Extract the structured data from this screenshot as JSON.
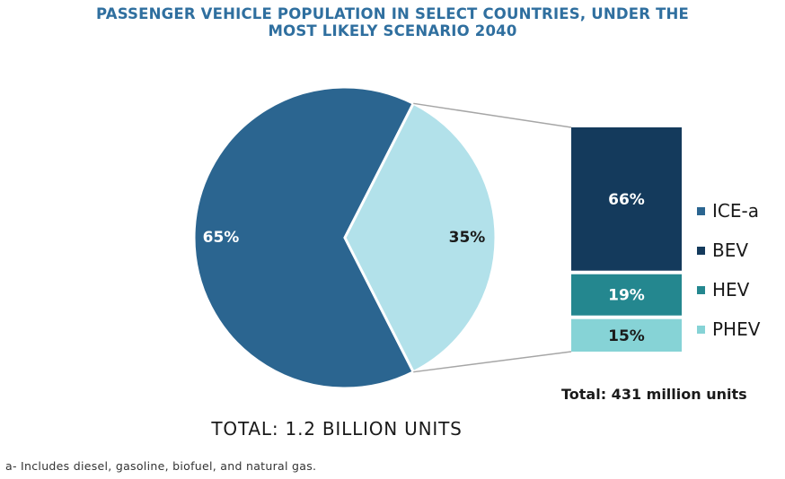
{
  "title_lines": [
    "PASSENGER VEHICLE POPULATION IN SELECT COUNTRIES, UNDER THE",
    "MOST LIKELY SCENARIO 2040"
  ],
  "chart_data": [
    {
      "type": "pie",
      "labels": [
        "",
        ""
      ],
      "values": [
        65,
        35
      ],
      "value_labels": [
        "65%",
        "35%"
      ],
      "colors": [
        "#2b6590",
        "#b2e1ea"
      ],
      "total_label": "TOTAL: 1.2 BILLION UNITS"
    },
    {
      "type": "bar",
      "stacked": true,
      "categories": [
        "BEV",
        "HEV",
        "PHEV"
      ],
      "values": [
        66,
        19,
        15
      ],
      "value_labels": [
        "66%",
        "19%",
        "15%"
      ],
      "colors": [
        "#143a5c",
        "#24878f",
        "#86d3d6"
      ],
      "total_label": "Total: 431 million units"
    }
  ],
  "legend": [
    {
      "label": "ICE-a",
      "color": "#2b6590"
    },
    {
      "label": "BEV",
      "color": "#143a5c"
    },
    {
      "label": "HEV",
      "color": "#24878f"
    },
    {
      "label": "PHEV",
      "color": "#86d3d6"
    }
  ],
  "footnote": "a- Includes diesel, gasoline, biofuel, and natural gas."
}
